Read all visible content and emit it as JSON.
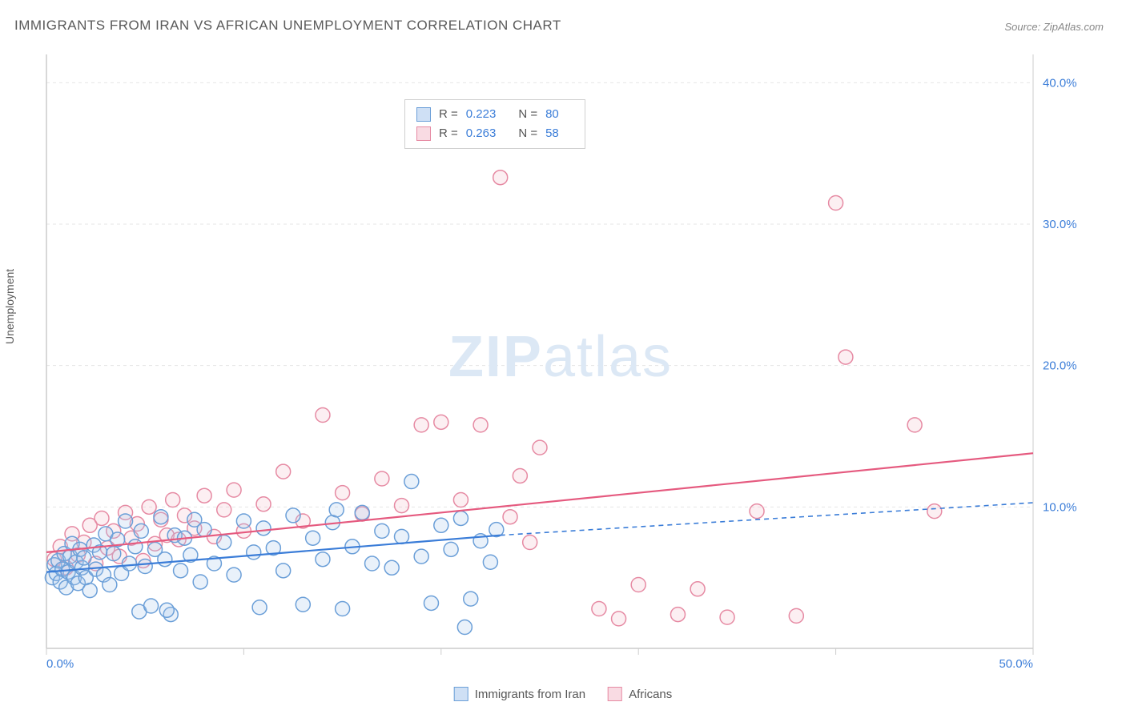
{
  "chart": {
    "title": "IMMIGRANTS FROM IRAN VS AFRICAN UNEMPLOYMENT CORRELATION CHART",
    "source": "Source: ZipAtlas.com",
    "y_axis_label": "Unemployment",
    "watermark_zip": "ZIP",
    "watermark_atlas": "atlas",
    "type": "scatter",
    "x_range": [
      0,
      50
    ],
    "y_range": [
      0,
      42
    ],
    "x_ticks": [
      0,
      10,
      20,
      30,
      40,
      50
    ],
    "y_ticks": [
      10,
      20,
      30,
      40
    ],
    "x_tick_labels": [
      "0.0%",
      "",
      "",
      "",
      "",
      "50.0%"
    ],
    "y_tick_labels": [
      "10.0%",
      "20.0%",
      "30.0%",
      "40.0%"
    ],
    "gridline_color": "#e5e5e5",
    "axis_line_color": "#cccccc",
    "tick_label_color": "#3b7dd8",
    "background_color": "#ffffff",
    "marker_radius": 9,
    "marker_stroke_width": 1.5,
    "marker_fill_opacity": 0.25,
    "trend_line_width": 2.2,
    "series": [
      {
        "name": "Immigrants from Iran",
        "marker_fill": "#a7c7ed",
        "marker_stroke": "#6b9fd8",
        "swatch_fill": "#cfe0f5",
        "swatch_stroke": "#6b9fd8",
        "line_color": "#3b7dd8",
        "R": "0.223",
        "N": "80",
        "trend": {
          "x1": 0,
          "y1": 5.4,
          "x2": 23,
          "y2": 8.0,
          "dash_x2": 50,
          "dash_y2": 10.3
        },
        "points": [
          [
            0.3,
            5.0
          ],
          [
            0.4,
            5.9
          ],
          [
            0.5,
            5.3
          ],
          [
            0.6,
            6.2
          ],
          [
            0.7,
            4.7
          ],
          [
            0.8,
            5.6
          ],
          [
            0.9,
            6.7
          ],
          [
            1.0,
            4.3
          ],
          [
            1.1,
            5.4
          ],
          [
            1.2,
            6.5
          ],
          [
            1.3,
            7.4
          ],
          [
            1.4,
            5.0
          ],
          [
            1.5,
            6.1
          ],
          [
            1.6,
            4.6
          ],
          [
            1.7,
            7.0
          ],
          [
            1.8,
            5.7
          ],
          [
            1.9,
            6.4
          ],
          [
            2.0,
            5.0
          ],
          [
            2.2,
            4.1
          ],
          [
            2.4,
            7.3
          ],
          [
            2.5,
            5.6
          ],
          [
            2.7,
            6.8
          ],
          [
            2.9,
            5.2
          ],
          [
            3.0,
            8.1
          ],
          [
            3.2,
            4.5
          ],
          [
            3.4,
            6.7
          ],
          [
            3.6,
            7.7
          ],
          [
            3.8,
            5.3
          ],
          [
            4.0,
            9.0
          ],
          [
            4.2,
            6.0
          ],
          [
            4.5,
            7.2
          ],
          [
            4.7,
            2.6
          ],
          [
            4.8,
            8.3
          ],
          [
            5.0,
            5.8
          ],
          [
            5.3,
            3.0
          ],
          [
            5.5,
            7.0
          ],
          [
            5.8,
            9.3
          ],
          [
            6.0,
            6.3
          ],
          [
            6.3,
            2.4
          ],
          [
            6.5,
            8.0
          ],
          [
            6.8,
            5.5
          ],
          [
            7.0,
            7.8
          ],
          [
            7.3,
            6.6
          ],
          [
            7.5,
            9.1
          ],
          [
            7.8,
            4.7
          ],
          [
            8.0,
            8.4
          ],
          [
            8.5,
            6.0
          ],
          [
            9.0,
            7.5
          ],
          [
            9.5,
            5.2
          ],
          [
            10.0,
            9.0
          ],
          [
            10.5,
            6.8
          ],
          [
            11.0,
            8.5
          ],
          [
            11.5,
            7.1
          ],
          [
            12.0,
            5.5
          ],
          [
            12.5,
            9.4
          ],
          [
            13.0,
            3.1
          ],
          [
            13.5,
            7.8
          ],
          [
            14.0,
            6.3
          ],
          [
            14.5,
            8.9
          ],
          [
            15.0,
            2.8
          ],
          [
            15.5,
            7.2
          ],
          [
            16.0,
            9.6
          ],
          [
            16.5,
            6.0
          ],
          [
            17.0,
            8.3
          ],
          [
            17.5,
            5.7
          ],
          [
            18.0,
            7.9
          ],
          [
            18.5,
            11.8
          ],
          [
            19.0,
            6.5
          ],
          [
            19.5,
            3.2
          ],
          [
            20.0,
            8.7
          ],
          [
            20.5,
            7.0
          ],
          [
            21.0,
            9.2
          ],
          [
            21.5,
            3.5
          ],
          [
            22.0,
            7.6
          ],
          [
            22.5,
            6.1
          ],
          [
            22.8,
            8.4
          ],
          [
            21.2,
            1.5
          ],
          [
            14.7,
            9.8
          ],
          [
            10.8,
            2.9
          ],
          [
            6.1,
            2.7
          ]
        ]
      },
      {
        "name": "Africans",
        "marker_fill": "#f5c0cd",
        "marker_stroke": "#e68aa3",
        "swatch_fill": "#f9dbe3",
        "swatch_stroke": "#e68aa3",
        "line_color": "#e55a7f",
        "R": "0.263",
        "N": "58",
        "trend": {
          "x1": 0,
          "y1": 6.8,
          "x2": 50,
          "y2": 13.8
        },
        "points": [
          [
            0.4,
            6.3
          ],
          [
            0.7,
            7.2
          ],
          [
            1.0,
            5.7
          ],
          [
            1.3,
            8.1
          ],
          [
            1.6,
            6.6
          ],
          [
            1.9,
            7.5
          ],
          [
            2.2,
            8.7
          ],
          [
            2.5,
            6.0
          ],
          [
            2.8,
            9.2
          ],
          [
            3.1,
            7.1
          ],
          [
            3.4,
            8.3
          ],
          [
            3.7,
            6.5
          ],
          [
            4.0,
            9.6
          ],
          [
            4.3,
            7.8
          ],
          [
            4.6,
            8.8
          ],
          [
            4.9,
            6.2
          ],
          [
            5.2,
            10.0
          ],
          [
            5.5,
            7.4
          ],
          [
            5.8,
            9.1
          ],
          [
            6.1,
            8.0
          ],
          [
            6.4,
            10.5
          ],
          [
            6.7,
            7.7
          ],
          [
            7.0,
            9.4
          ],
          [
            7.5,
            8.5
          ],
          [
            8.0,
            10.8
          ],
          [
            8.5,
            7.9
          ],
          [
            9.0,
            9.8
          ],
          [
            9.5,
            11.2
          ],
          [
            10.0,
            8.3
          ],
          [
            11.0,
            10.2
          ],
          [
            12.0,
            12.5
          ],
          [
            13.0,
            9.0
          ],
          [
            14.0,
            16.5
          ],
          [
            15.0,
            11.0
          ],
          [
            16.0,
            9.5
          ],
          [
            17.0,
            12.0
          ],
          [
            18.0,
            10.1
          ],
          [
            19.0,
            15.8
          ],
          [
            20.0,
            16.0
          ],
          [
            21.0,
            10.5
          ],
          [
            22.0,
            15.8
          ],
          [
            23.0,
            33.3
          ],
          [
            23.5,
            9.3
          ],
          [
            24.0,
            12.2
          ],
          [
            24.5,
            7.5
          ],
          [
            25.0,
            14.2
          ],
          [
            29.0,
            2.1
          ],
          [
            30.0,
            4.5
          ],
          [
            32.0,
            2.4
          ],
          [
            33.0,
            4.2
          ],
          [
            34.5,
            2.2
          ],
          [
            36.0,
            9.7
          ],
          [
            38.0,
            2.3
          ],
          [
            40.0,
            31.5
          ],
          [
            40.5,
            20.6
          ],
          [
            44.0,
            15.8
          ],
          [
            45.0,
            9.7
          ],
          [
            28.0,
            2.8
          ]
        ]
      }
    ],
    "bottom_legend": [
      {
        "label": "Immigrants from Iran",
        "swatch_fill": "#cfe0f5",
        "swatch_stroke": "#6b9fd8"
      },
      {
        "label": "Africans",
        "swatch_fill": "#f9dbe3",
        "swatch_stroke": "#e68aa3"
      }
    ]
  }
}
